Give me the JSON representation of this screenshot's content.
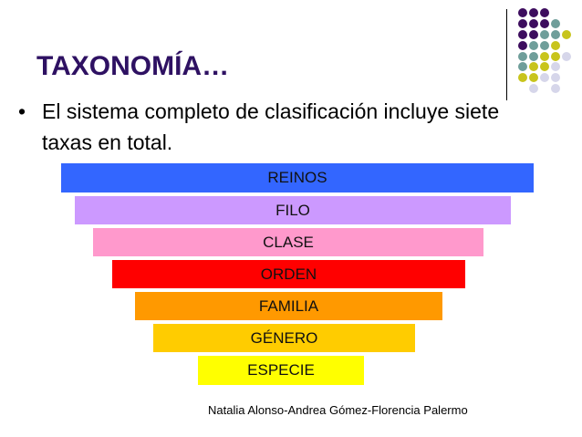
{
  "title": "TAXONOMÍA…",
  "bullet": "El sistema completo de clasificación incluye siete taxas en total.",
  "levels": [
    {
      "label": "REINOS",
      "color": "#3366ff"
    },
    {
      "label": "FILO",
      "color": "#cc99ff"
    },
    {
      "label": "CLASE",
      "color": "#ff99cc"
    },
    {
      "label": "ORDEN",
      "color": "#ff0000"
    },
    {
      "label": "FAMILIA",
      "color": "#ff9900"
    },
    {
      "label": "GÉNERO",
      "color": "#ffcc00"
    },
    {
      "label": "ESPECIE",
      "color": "#ffff00"
    }
  ],
  "credit": "Natalia Alonso-Andrea Gómez-Florencia Palermo",
  "decor_colors": {
    "P": "#3d0d5e",
    "T": "#6f9e9a",
    "Y": "#c8c41c",
    "L": "#d6d6ea"
  }
}
